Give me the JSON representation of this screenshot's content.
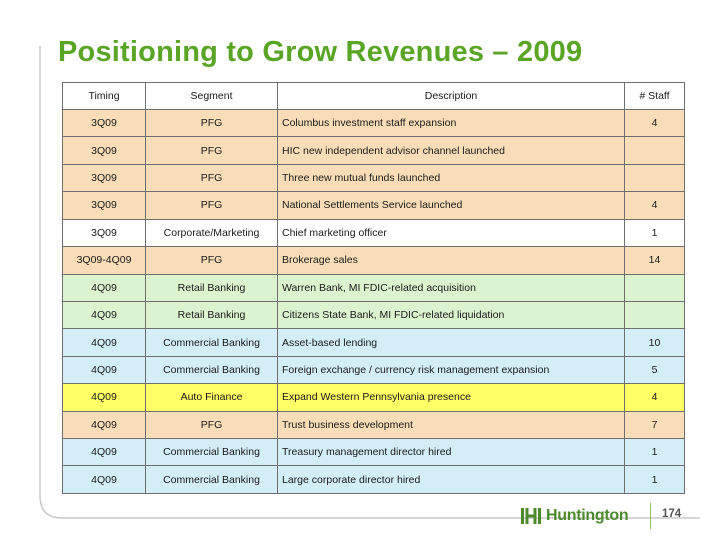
{
  "slide": {
    "title": "Positioning to Grow Revenues – 2009",
    "page_number": "174",
    "brand": "Huntington"
  },
  "colors": {
    "title": "#5aa526",
    "tan": "#f9ddb8",
    "green": "#dbf3cf",
    "blue": "#d4eef8",
    "yellow": "#ffff66",
    "white": "#ffffff"
  },
  "table": {
    "headers": [
      "Timing",
      "Segment",
      "Description",
      "# Staff"
    ],
    "rows": [
      {
        "timing": "3Q09",
        "segment": "PFG",
        "description": "Columbus investment staff expansion",
        "staff": "4",
        "color": "#f9ddb8"
      },
      {
        "timing": "3Q09",
        "segment": "PFG",
        "description": "HIC new independent advisor channel launched",
        "staff": "",
        "color": "#f9ddb8"
      },
      {
        "timing": "3Q09",
        "segment": "PFG",
        "description": "Three new mutual funds launched",
        "staff": "",
        "color": "#f9ddb8"
      },
      {
        "timing": "3Q09",
        "segment": "PFG",
        "description": "National Settlements Service launched",
        "staff": "4",
        "color": "#f9ddb8"
      },
      {
        "timing": "3Q09",
        "segment": "Corporate/Marketing",
        "description": "Chief marketing officer",
        "staff": "1",
        "color": "#ffffff"
      },
      {
        "timing": "3Q09-4Q09",
        "segment": "PFG",
        "description": "Brokerage sales",
        "staff": "14",
        "color": "#f9ddb8"
      },
      {
        "timing": "4Q09",
        "segment": "Retail Banking",
        "description": "Warren Bank, MI FDIC-related acquisition",
        "staff": "",
        "color": "#dbf3cf"
      },
      {
        "timing": "4Q09",
        "segment": "Retail Banking",
        "description": "Citizens State Bank, MI FDIC-related liquidation",
        "staff": "",
        "color": "#dbf3cf"
      },
      {
        "timing": "4Q09",
        "segment": "Commercial Banking",
        "description": "Asset-based lending",
        "staff": "10",
        "color": "#d4eef8"
      },
      {
        "timing": "4Q09",
        "segment": "Commercial Banking",
        "description": "Foreign exchange / currency risk management expansion",
        "staff": "5",
        "color": "#d4eef8"
      },
      {
        "timing": "4Q09",
        "segment": "Auto Finance",
        "description": "Expand Western Pennsylvania presence",
        "staff": "4",
        "color": "#ffff66"
      },
      {
        "timing": "4Q09",
        "segment": "PFG",
        "description": "Trust business development",
        "staff": "7",
        "color": "#f9ddb8"
      },
      {
        "timing": "4Q09",
        "segment": "Commercial Banking",
        "description": "Treasury management director hired",
        "staff": "1",
        "color": "#d4eef8"
      },
      {
        "timing": "4Q09",
        "segment": "Commercial Banking",
        "description": "Large corporate director hired",
        "staff": "1",
        "color": "#d4eef8"
      }
    ]
  }
}
